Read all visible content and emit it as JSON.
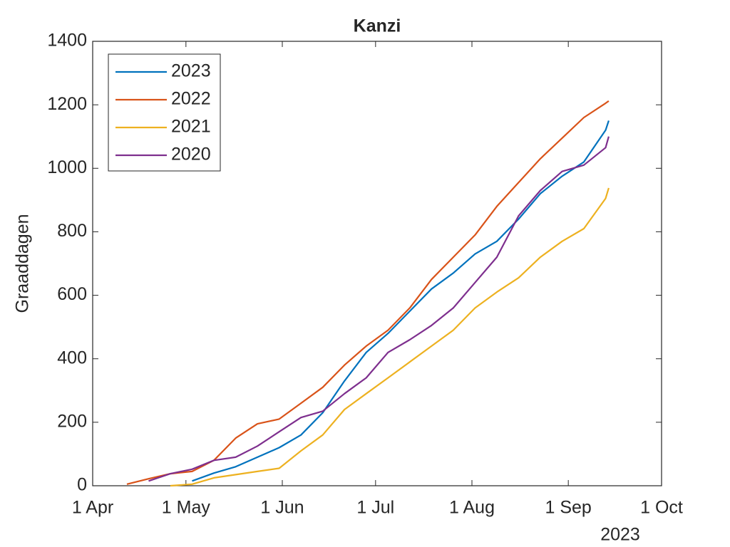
{
  "chart_data": {
    "type": "line",
    "title": "Kanzi",
    "ylabel": "Graaddagen",
    "x_secondary_label": "2023",
    "x": [
      "2023-04-12",
      "2023-04-19",
      "2023-04-26",
      "2023-05-03",
      "2023-05-10",
      "2023-05-17",
      "2023-05-24",
      "2023-05-31",
      "2023-06-07",
      "2023-06-14",
      "2023-06-21",
      "2023-06-28",
      "2023-07-05",
      "2023-07-12",
      "2023-07-19",
      "2023-07-26",
      "2023-08-02",
      "2023-08-09",
      "2023-08-16",
      "2023-08-23",
      "2023-08-30",
      "2023-09-06",
      "2023-09-13",
      "2023-09-14"
    ],
    "series": [
      {
        "name": "2023",
        "color": "#0072BD",
        "values": [
          null,
          null,
          null,
          15,
          40,
          60,
          90,
          120,
          160,
          230,
          330,
          420,
          480,
          550,
          620,
          670,
          730,
          770,
          840,
          920,
          975,
          1020,
          1120,
          1150
        ]
      },
      {
        "name": "2022",
        "color": "#D95319",
        "values": [
          5,
          22,
          38,
          45,
          80,
          150,
          195,
          210,
          260,
          310,
          380,
          440,
          490,
          560,
          650,
          720,
          790,
          880,
          955,
          1030,
          1095,
          1160,
          1205,
          1212
        ]
      },
      {
        "name": "2021",
        "color": "#EDB120",
        "values": [
          null,
          null,
          0,
          5,
          25,
          35,
          45,
          55,
          110,
          160,
          240,
          290,
          340,
          390,
          440,
          490,
          560,
          610,
          655,
          720,
          770,
          810,
          905,
          938
        ]
      },
      {
        "name": "2020",
        "color": "#7E2F8E",
        "values": [
          null,
          15,
          38,
          52,
          80,
          90,
          125,
          170,
          215,
          235,
          290,
          340,
          420,
          460,
          505,
          560,
          640,
          720,
          850,
          930,
          990,
          1010,
          1065,
          1100
        ]
      }
    ],
    "xlim": [
      "2023-04-01",
      "2023-10-01"
    ],
    "xticks": [
      {
        "value": "2023-04-01",
        "label": "1 Apr"
      },
      {
        "value": "2023-05-01",
        "label": "1 May"
      },
      {
        "value": "2023-06-01",
        "label": "1 Jun"
      },
      {
        "value": "2023-07-01",
        "label": "1 Jul"
      },
      {
        "value": "2023-08-01",
        "label": "1 Aug"
      },
      {
        "value": "2023-09-01",
        "label": "1 Sep"
      },
      {
        "value": "2023-10-01",
        "label": "1 Oct"
      }
    ],
    "ylim": [
      0,
      1400
    ],
    "yticks": [
      0,
      200,
      400,
      600,
      800,
      1000,
      1200,
      1400
    ],
    "legend": "upper left",
    "grid": false
  }
}
